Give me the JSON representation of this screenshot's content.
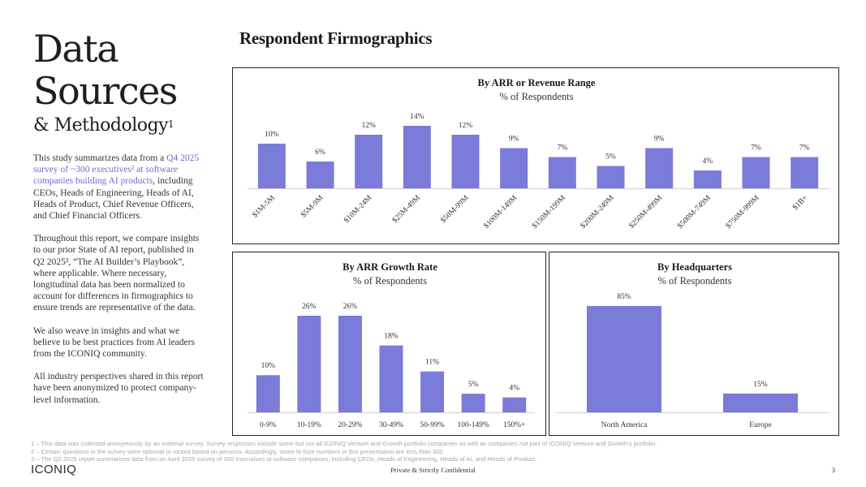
{
  "page": {
    "title_line1": "Data",
    "title_line2": "Sources",
    "subtitle": "& Methodology",
    "subtitle_sup": "1",
    "section_title": "Respondent Firmographics"
  },
  "intro": {
    "p1_pre": "This study summarizes data from a ",
    "p1_highlight": "Q4 2025 survey of ~300 executives² at software companies building AI products",
    "p1_post": ", including CEOs, Heads of Engineering, Heads of AI, Heads of Product, Chief Revenue Officers, and Chief Financial Officers.",
    "p2": "Throughout this report, we compare insights to our prior State of AI report, published in Q2 2025³, “The AI Builder’s Playbook”, where applicable. Where necessary, longitudinal data has been normalized to account for differences in firmographics to ensure trends are representative of the data.",
    "p3": "We also weave in insights and what we believe to be best practices from AI leaders from the ICONIQ community.",
    "p4": "All industry perspectives shared in this report have been anonymized to protect company-level information."
  },
  "chart_data": [
    {
      "type": "bar",
      "title": "By ARR or Revenue Range",
      "subtitle": "% of Respondents",
      "categories": [
        "$1M-5M",
        "$5M-9M",
        "$10M-24M",
        "$25M-49M",
        "$50M-99M",
        "$100M-149M",
        "$150M-199M",
        "$200M-249M",
        "$250M-499M",
        "$500M-749M",
        "$750M-999M",
        "$1B+"
      ],
      "values": [
        10,
        6,
        12,
        14,
        12,
        9,
        7,
        5,
        9,
        4,
        7,
        7
      ],
      "value_suffix": "%",
      "ylim": [
        0,
        14
      ],
      "xlabel": "",
      "ylabel": "",
      "grid": false
    },
    {
      "type": "bar",
      "title": "By ARR Growth Rate",
      "subtitle": "% of Respondents",
      "categories": [
        "0-9%",
        "10-19%",
        "20-29%",
        "30-49%",
        "50-99%",
        "100-149%",
        "150%+"
      ],
      "values": [
        10,
        26,
        26,
        18,
        11,
        5,
        4
      ],
      "value_suffix": "%",
      "ylim": [
        0,
        26
      ],
      "xlabel": "",
      "ylabel": "",
      "grid": false
    },
    {
      "type": "bar",
      "title": "By Headquarters",
      "subtitle": "% of Respondents",
      "categories": [
        "North America",
        "Europe"
      ],
      "values": [
        85,
        15
      ],
      "value_suffix": "%",
      "ylim": [
        0,
        85
      ],
      "xlabel": "",
      "ylabel": "",
      "grid": false
    }
  ],
  "colors": {
    "bar": "#7b7bd9",
    "axis": "#d0d0d0",
    "highlight_text": "#6b6bd6"
  },
  "footnotes": [
    "1 – This data was collected anonymously by an external survey. Survey responses include some but not all ICONIQ Venture and Growth portfolio companies as well as companies not part of ICONIQ Venture and Growth’s portfolio.",
    "2 – Certain questions in the survey were optional or routed based on persona. Accordingly, some N-Size numbers in this presentation are less than 300.",
    "3 – The Q2 2025 report summarizes data from an April 2025 survey of 300 executives at software companies, including CEOs, Heads of Engineering, Heads of AI, and Heads of Product."
  ],
  "footer": {
    "logo": "ICONIQ",
    "confidential": "Private & Strictly Confidential",
    "page_number": "3"
  }
}
